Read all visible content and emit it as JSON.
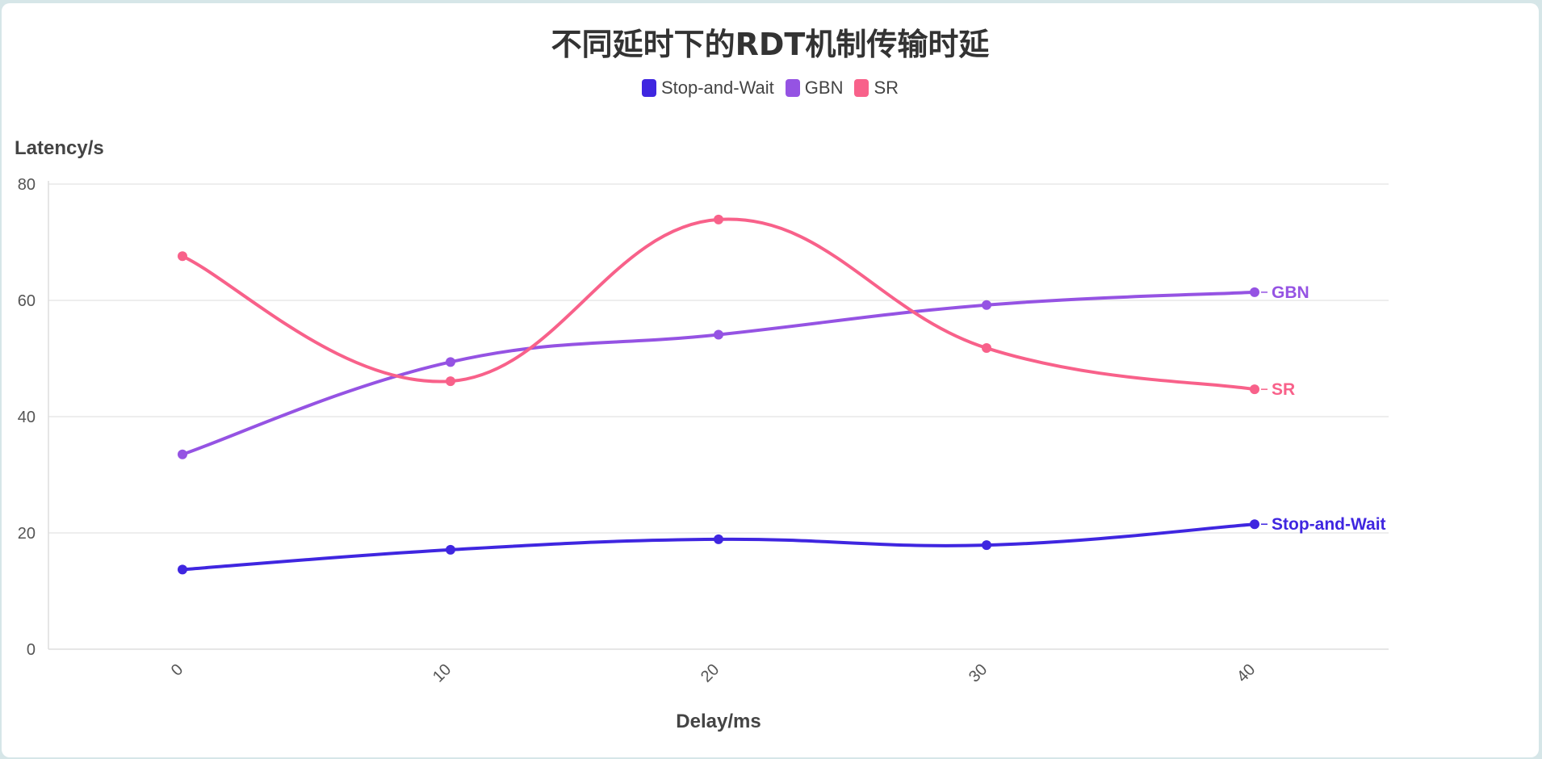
{
  "chart_data": {
    "type": "line",
    "title": "不同延时下的RDT机制传输时延",
    "xlabel": "Delay/ms",
    "ylabel": "Latency/s",
    "categories": [
      "0",
      "10",
      "20",
      "30",
      "40"
    ],
    "yticks": [
      "0",
      "20",
      "40",
      "60",
      "80"
    ],
    "ylim": [
      0,
      80
    ],
    "grid": true,
    "legend_position": "top-center",
    "smooth": true,
    "series": [
      {
        "name": "Stop-and-Wait",
        "color": "#3f26e0",
        "values": [
          13.7,
          17.1,
          18.9,
          17.9,
          21.5
        ]
      },
      {
        "name": "GBN",
        "color": "#9553e3",
        "values": [
          33.5,
          49.4,
          54.1,
          59.2,
          61.4
        ]
      },
      {
        "name": "SR",
        "color": "#f8618a",
        "values": [
          67.6,
          46.1,
          73.9,
          51.8,
          44.7
        ]
      }
    ]
  }
}
